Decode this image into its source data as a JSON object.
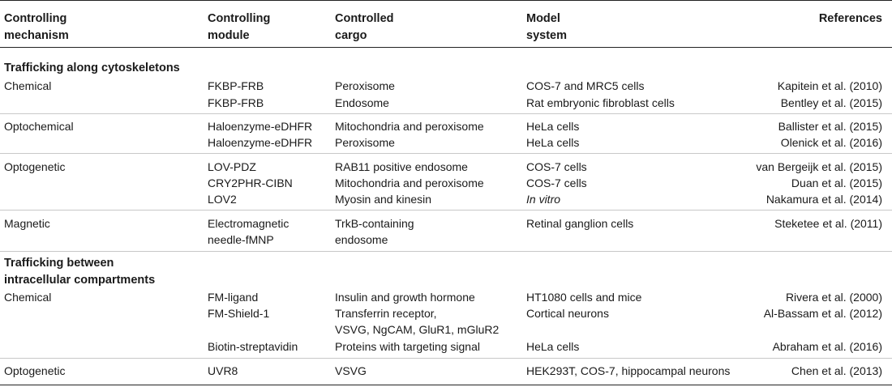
{
  "headers": {
    "mechanism": [
      "Controlling",
      "mechanism"
    ],
    "module": [
      "Controlling",
      "module"
    ],
    "cargo": [
      "Controlled",
      "cargo"
    ],
    "model": [
      "Model",
      "system"
    ],
    "references": "References"
  },
  "sections": {
    "s1": "Trafficking along cytoskeletons",
    "s2": [
      "Trafficking between",
      "intracellular compartments"
    ]
  },
  "rows": [
    {
      "mechanism": "Chemical",
      "module": "FKBP-FRB",
      "cargo": "Peroxisome",
      "model": "COS-7 and MRC5 cells",
      "ref": "Kapitein et al. (2010)"
    },
    {
      "mechanism": "",
      "module": "FKBP-FRB",
      "cargo": "Endosome",
      "model": "Rat embryonic fibroblast cells",
      "ref": "Bentley et al. (2015)"
    },
    {
      "mechanism": "Optochemical",
      "module": "Haloenzyme-eDHFR",
      "cargo": "Mitochondria and peroxisome",
      "model": "HeLa cells",
      "ref": "Ballister et al. (2015)"
    },
    {
      "mechanism": "",
      "module": "Haloenzyme-eDHFR",
      "cargo": "Peroxisome",
      "model": "HeLa cells",
      "ref": "Olenick et al. (2016)"
    },
    {
      "mechanism": "Optogenetic",
      "module": "LOV-PDZ",
      "cargo": "RAB11 positive endosome",
      "model": "COS-7 cells",
      "ref": "van Bergeijk et al. (2015)"
    },
    {
      "mechanism": "",
      "module": "CRY2PHR-CIBN",
      "cargo": "Mitochondria and peroxisome",
      "model": "COS-7 cells",
      "ref": "Duan et al. (2015)"
    },
    {
      "mechanism": "",
      "module": "LOV2",
      "cargo": "Myosin and kinesin",
      "model": "In vitro",
      "ref": "Nakamura et al. (2014)"
    },
    {
      "mechanism": "Magnetic",
      "module": [
        "Electromagnetic",
        "needle-fMNP"
      ],
      "cargo": [
        "TrkB-containing",
        "endosome"
      ],
      "model": "Retinal ganglion cells",
      "ref": "Steketee et al. (2011)"
    },
    {
      "mechanism": "Chemical",
      "module": "FM-ligand",
      "cargo": "Insulin and growth hormone",
      "model": "HT1080 cells and mice",
      "ref": "Rivera et al. (2000)"
    },
    {
      "mechanism": "",
      "module": "FM-Shield-1",
      "cargo": [
        "Transferrin receptor,",
        "VSVG, NgCAM, GluR1, mGluR2"
      ],
      "model": "Cortical neurons",
      "ref": "Al-Bassam et al. (2012)"
    },
    {
      "mechanism": "",
      "module": "Biotin-streptavidin",
      "cargo": "Proteins with targeting signal",
      "model": "HeLa cells",
      "ref": "Abraham et al. (2016)"
    },
    {
      "mechanism": "Optogenetic",
      "module": "UVR8",
      "cargo": "VSVG",
      "model": "HEK293T, COS-7, hippocampal neurons",
      "ref": "Chen et al. (2013)"
    }
  ]
}
